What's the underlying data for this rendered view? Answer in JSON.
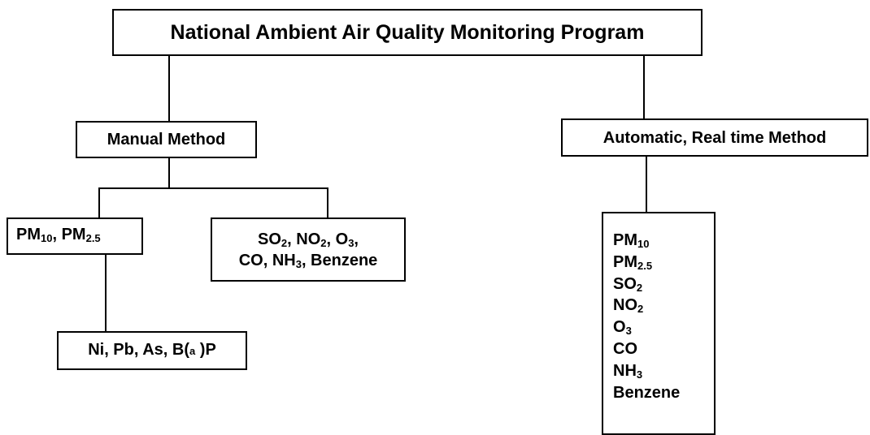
{
  "nodes": [
    {
      "lines": [
        [
          "National Ambient Air Quality Monitoring Program"
        ]
      ]
    },
    {
      "lines": [
        [
          "Manual Method"
        ]
      ]
    },
    {
      "lines": [
        [
          "Automatic, Real time Method"
        ]
      ]
    },
    {
      "lines": [
        [
          "PM",
          {
            "sub": "10"
          },
          ", PM",
          {
            "sub": "2.5"
          }
        ]
      ]
    },
    {
      "lines": [
        [
          "SO",
          {
            "sub": "2"
          },
          ", NO",
          {
            "sub": "2"
          },
          ", O",
          {
            "sub": "3"
          },
          ","
        ],
        [
          "CO, NH",
          {
            "sub": "3"
          },
          ", Benzene"
        ]
      ]
    },
    {
      "lines": [
        [
          "Ni, Pb, As, B(",
          {
            "small": "a"
          },
          " )P"
        ]
      ]
    },
    {
      "lines": [
        [
          "PM",
          {
            "sub": "10"
          }
        ],
        [
          "PM",
          {
            "sub": "2.5"
          }
        ],
        [
          "SO",
          {
            "sub": "2"
          }
        ],
        [
          "NO",
          {
            "sub": "2"
          }
        ],
        [
          "O",
          {
            "sub": "3"
          }
        ],
        [
          "CO"
        ],
        [
          "NH",
          {
            "sub": "3"
          }
        ],
        [
          "Benzene"
        ]
      ]
    }
  ]
}
